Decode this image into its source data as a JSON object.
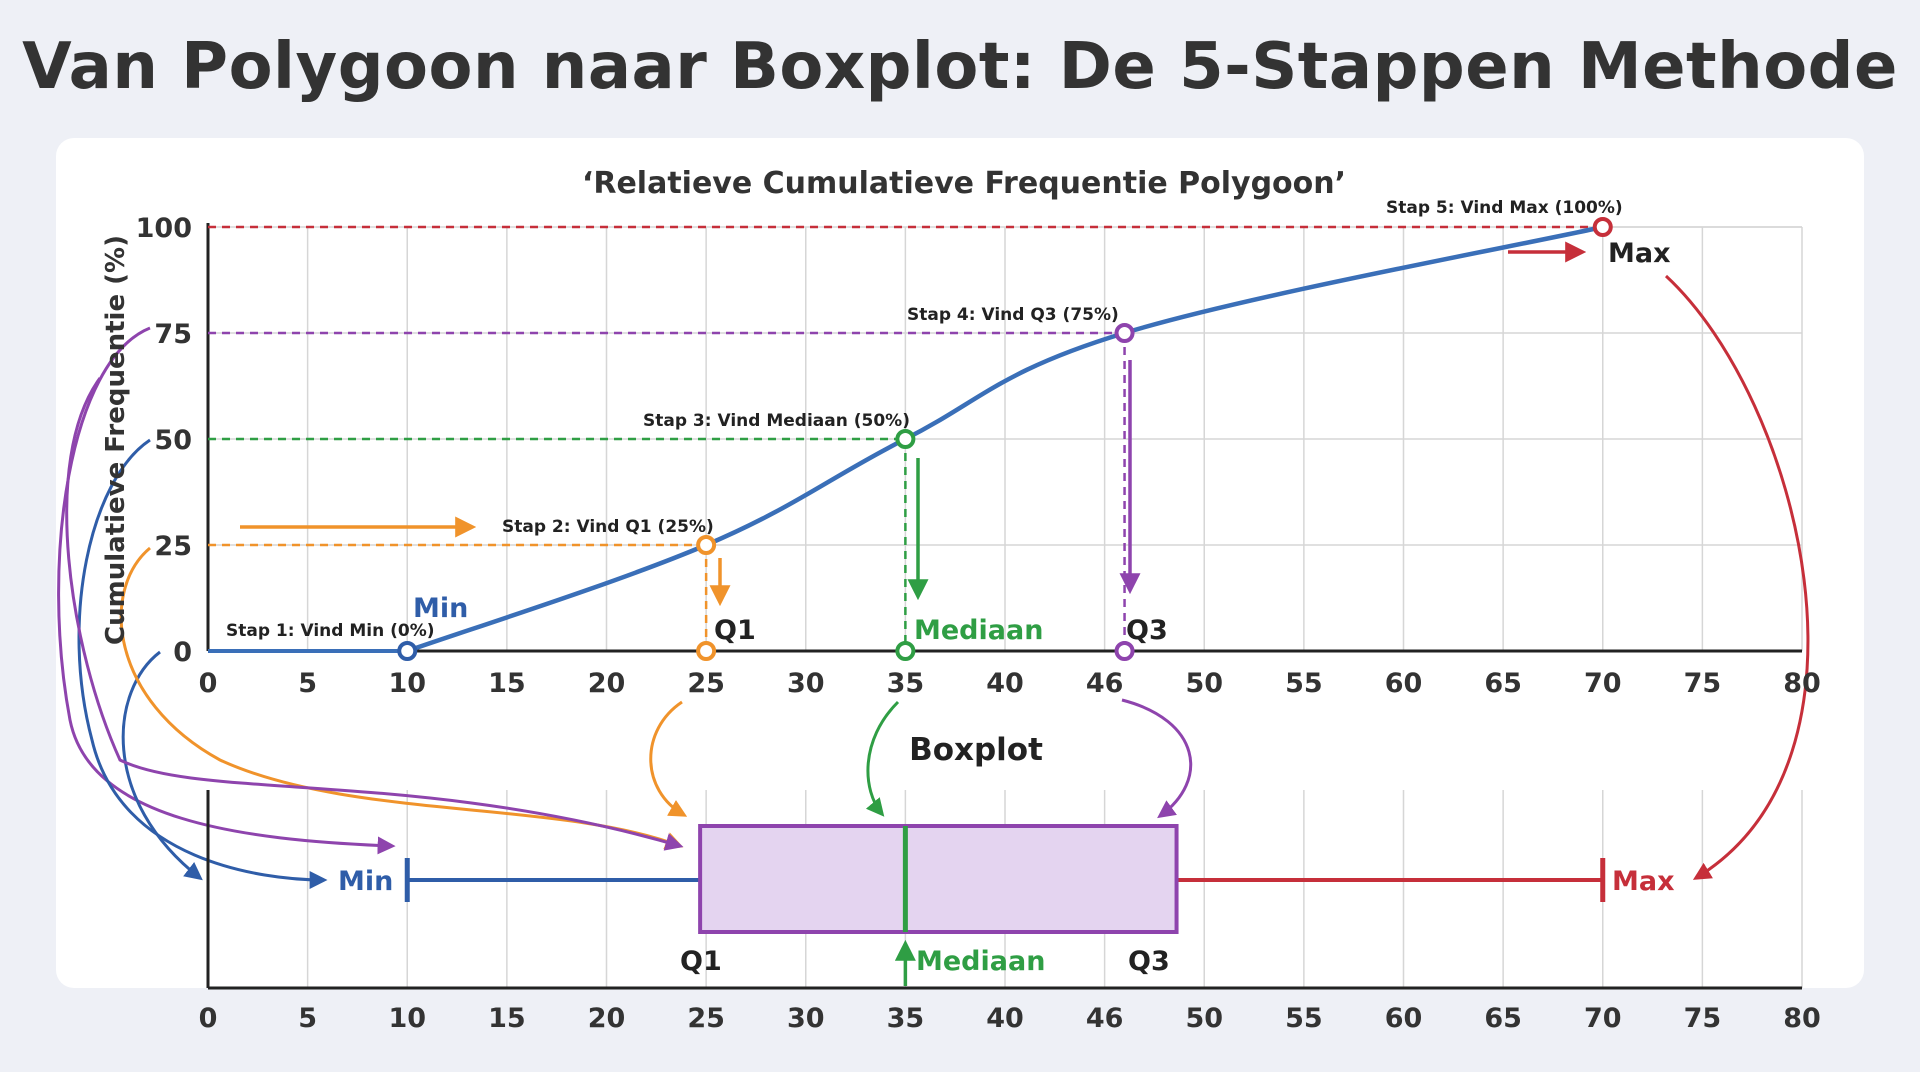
{
  "title": "Van Polygoon naar Boxplot: De 5-Stappen Methode",
  "chart_data": [
    {
      "type": "line",
      "title": "‘Relatieve Cumulatieve Frequentie Polygoon’",
      "ylabel": "Cumulatieve Frequentie (%)",
      "xlim": [
        0,
        80
      ],
      "ylim": [
        0,
        100
      ],
      "x_ticks": [
        "0",
        "5",
        "10",
        "15",
        "20",
        "25",
        "30",
        "35",
        "40",
        "46",
        "50",
        "55",
        "60",
        "65",
        "70",
        "75",
        "80"
      ],
      "y_ticks": [
        "0",
        "25",
        "50",
        "75",
        "100"
      ],
      "grid": true,
      "curve": {
        "x": [
          10,
          25,
          35,
          46,
          70
        ],
        "y": [
          0,
          25,
          50,
          75,
          100
        ]
      },
      "steps": [
        {
          "label": "Stap 1: Vind Min (0%)",
          "x": 10,
          "y": 0,
          "marker": "Min",
          "color": "#2f5da8"
        },
        {
          "label": "Stap 2: Vind Q1 (25%)",
          "x": 25,
          "y": 25,
          "marker": "Q1",
          "color": "#f0932b"
        },
        {
          "label": "Stap 3: Vind Mediaan (50%)",
          "x": 35,
          "y": 50,
          "marker": "Mediaan",
          "color": "#2f9e44"
        },
        {
          "label": "Stap 4: Vind Q3 (75%)",
          "x": 46,
          "y": 75,
          "marker": "Q3",
          "color": "#8e44ad"
        },
        {
          "label": "Stap 5: Vind Max (100%)",
          "x": 70,
          "y": 100,
          "marker": "Max",
          "color": "#c62f3a"
        }
      ]
    },
    {
      "type": "boxplot",
      "title": "Boxplot",
      "xlim": [
        0,
        80
      ],
      "x_ticks": [
        "0",
        "5",
        "10",
        "15",
        "20",
        "25",
        "30",
        "35",
        "40",
        "46",
        "50",
        "55",
        "60",
        "65",
        "70",
        "75",
        "80"
      ],
      "min": 10,
      "q1": 25,
      "median": 35,
      "q3": 46,
      "max": 70,
      "labels": {
        "min": "Min",
        "q1": "Q1",
        "median": "Mediaan",
        "q3": "Q3",
        "max": "Max"
      }
    }
  ],
  "colors": {
    "curve": "#3a6fb8",
    "min": "#2f5da8",
    "q1": "#f0932b",
    "median": "#2f9e44",
    "q3": "#8e44ad",
    "max": "#c62f3a",
    "box_fill": "#e4d4f0",
    "grid": "#d6d6d6",
    "axis": "#222222"
  }
}
